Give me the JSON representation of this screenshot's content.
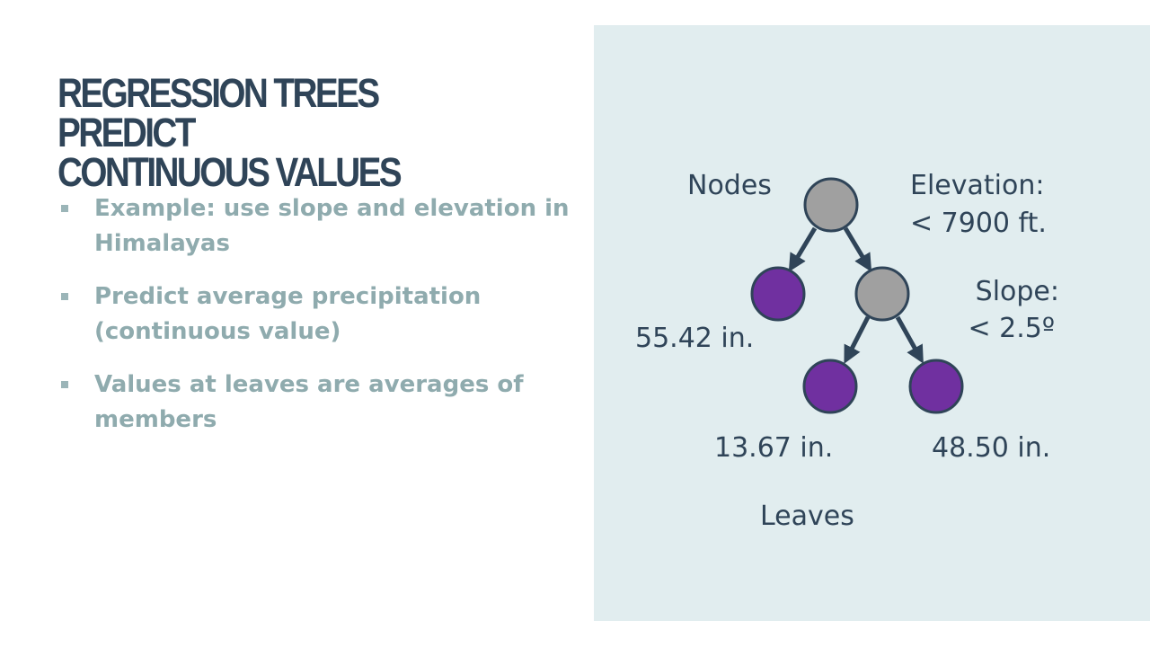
{
  "title": {
    "line1": "REGRESSION TREES PREDICT",
    "line2": "CONTINUOUS VALUES"
  },
  "bullets": [
    "Example: use slope and elevation in Himalayas",
    "Predict average precipitation (continuous value)",
    "Values at leaves are averages of members"
  ],
  "diagram": {
    "nodes_label": "Nodes",
    "leaves_label": "Leaves",
    "split1": {
      "line1": "Elevation:",
      "line2": "< 7900 ft."
    },
    "split2": {
      "line1": "Slope:",
      "line2": "< 2.5º"
    },
    "leaf_values": [
      "55.42 in.",
      "13.67 in.",
      "48.50 in."
    ],
    "colors": {
      "node_fill": "#a0a0a0",
      "leaf_fill": "#7030a0",
      "outline": "#2f4458",
      "panel": "#e1edef"
    }
  }
}
